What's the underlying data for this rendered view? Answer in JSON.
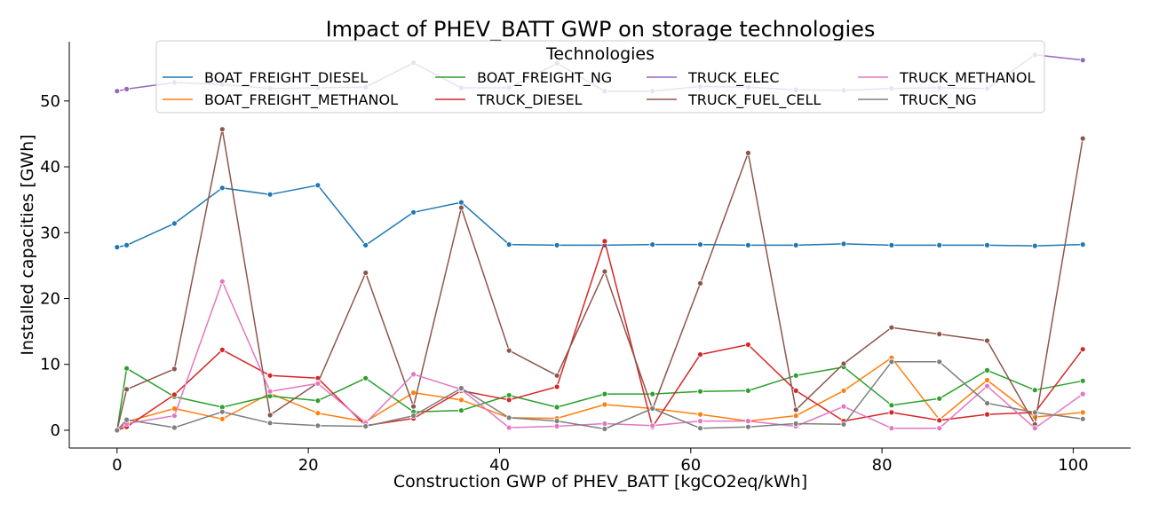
{
  "chart_data": {
    "type": "line",
    "title": "Impact of PHEV_BATT GWP on storage technologies",
    "xlabel": "Construction GWP of PHEV_BATT [kgCO2eq/kWh]",
    "ylabel": "Installed capacities [GWh]",
    "xlim": [
      -5,
      106
    ],
    "ylim": [
      -2.7,
      59
    ],
    "xticks": [
      0,
      20,
      40,
      60,
      80,
      100
    ],
    "yticks": [
      0,
      10,
      20,
      30,
      40,
      50
    ],
    "grid": false,
    "legend": {
      "title": "Technologies",
      "placement": "top-center",
      "columns": 4
    },
    "x": [
      0,
      1,
      6,
      11,
      16,
      21,
      26,
      31,
      36,
      41,
      46,
      51,
      56,
      61,
      66,
      71,
      76,
      81,
      86,
      91,
      96,
      101
    ],
    "series": [
      {
        "name": "BOAT_FREIGHT_DIESEL",
        "color": "#1f77b4",
        "values": [
          27.8,
          28.1,
          31.4,
          36.8,
          35.8,
          37.2,
          28.1,
          33.1,
          34.6,
          28.2,
          28.1,
          28.1,
          28.2,
          28.2,
          28.1,
          28.1,
          28.3,
          28.1,
          28.1,
          28.1,
          28.0,
          28.2
        ]
      },
      {
        "name": "BOAT_FREIGHT_METHANOL",
        "color": "#ff7f0e",
        "values": [
          0.0,
          1.3,
          3.3,
          1.7,
          5.6,
          2.6,
          1.3,
          5.7,
          4.6,
          1.9,
          1.8,
          3.9,
          3.3,
          2.4,
          1.4,
          2.2,
          6.0,
          11.0,
          1.6,
          7.6,
          2.0,
          2.7
        ]
      },
      {
        "name": "BOAT_FREIGHT_NG",
        "color": "#2ca02c",
        "values": [
          0.0,
          9.4,
          5.1,
          3.5,
          5.2,
          4.5,
          7.9,
          2.8,
          3.0,
          5.3,
          3.5,
          5.5,
          5.5,
          5.9,
          6.0,
          8.3,
          9.6,
          3.8,
          4.8,
          9.1,
          6.1,
          7.5
        ]
      },
      {
        "name": "TRUCK_DIESEL",
        "color": "#d62728",
        "values": [
          0.0,
          0.5,
          5.4,
          12.2,
          8.3,
          7.9,
          0.7,
          1.8,
          6.0,
          4.6,
          6.6,
          28.7,
          0.5,
          11.5,
          13.0,
          6.0,
          1.4,
          2.7,
          1.5,
          2.4,
          2.7,
          12.3
        ]
      },
      {
        "name": "TRUCK_ELEC",
        "color": "#9467bd",
        "values": [
          51.5,
          51.8,
          52.8,
          52.5,
          51.9,
          52.0,
          52.1,
          55.8,
          52.0,
          52.0,
          55.7,
          51.5,
          51.5,
          52.2,
          52.1,
          51.7,
          51.6,
          51.9,
          52.0,
          51.9,
          57.0,
          56.2
        ]
      },
      {
        "name": "TRUCK_FUEL_CELL",
        "color": "#8c564b",
        "values": [
          0.0,
          6.2,
          9.3,
          45.7,
          2.3,
          7.2,
          23.9,
          3.6,
          33.8,
          12.1,
          8.3,
          24.1,
          3.2,
          22.3,
          42.1,
          3.1,
          10.1,
          15.6,
          14.6,
          13.6,
          0.9,
          44.3
        ]
      },
      {
        "name": "TRUCK_METHANOL",
        "color": "#e377c2",
        "values": [
          0.0,
          1.0,
          2.2,
          22.6,
          5.9,
          7.1,
          1.1,
          8.5,
          6.2,
          0.4,
          0.6,
          1.0,
          0.7,
          1.4,
          1.4,
          0.6,
          3.6,
          0.3,
          0.3,
          6.7,
          0.3,
          5.5
        ]
      },
      {
        "name": "TRUCK_NG",
        "color": "#7f7f7f",
        "values": [
          0.0,
          1.6,
          0.4,
          2.8,
          1.1,
          0.7,
          0.6,
          2.2,
          6.4,
          1.9,
          1.4,
          0.2,
          3.3,
          0.3,
          0.5,
          1.0,
          0.9,
          10.4,
          10.4,
          4.1,
          2.7,
          1.7
        ]
      }
    ]
  }
}
